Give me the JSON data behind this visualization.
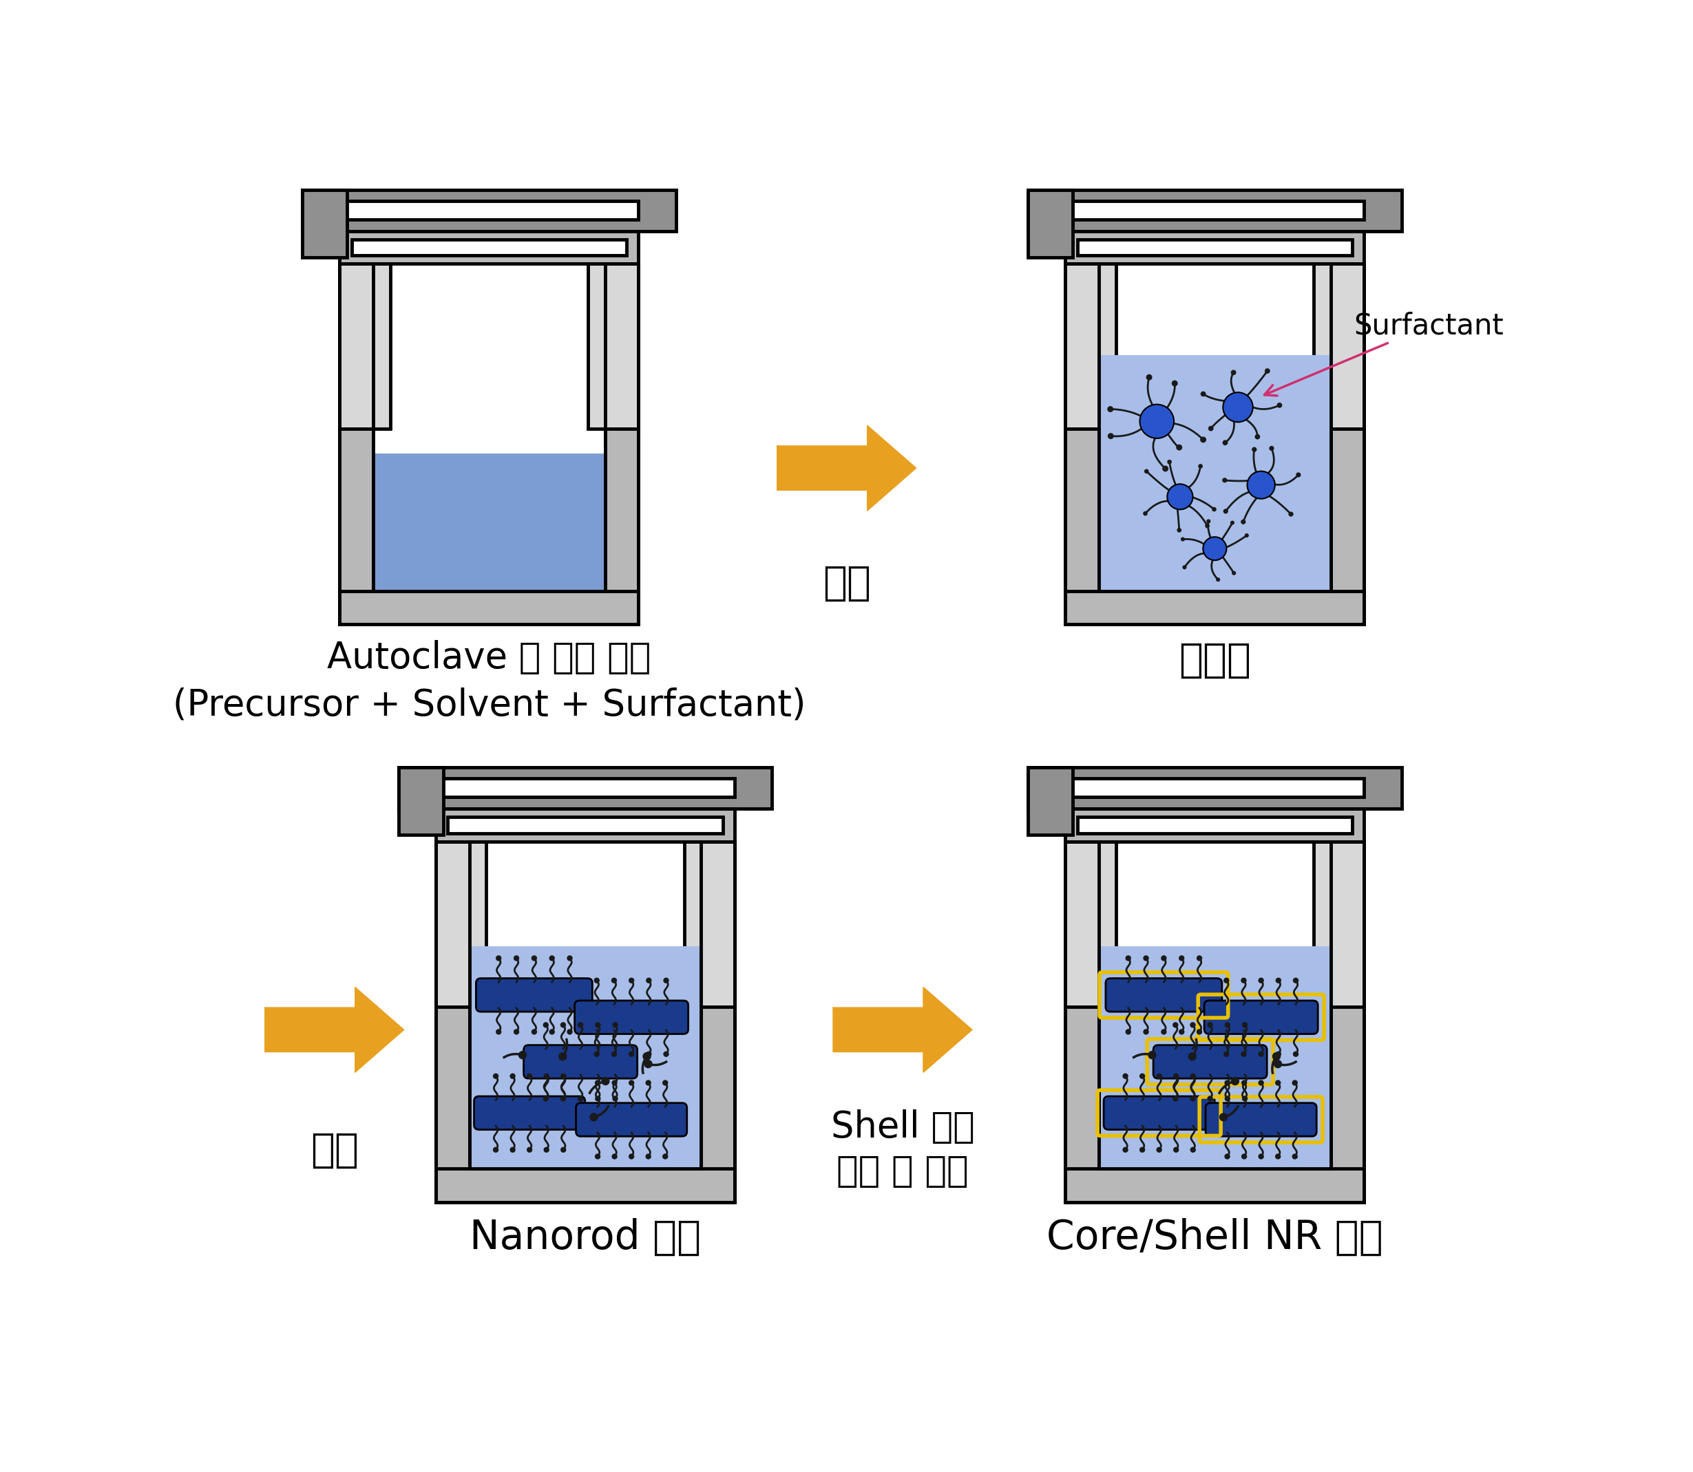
{
  "bg_color": "#ffffff",
  "gray_dark": "#606060",
  "gray_mid": "#909090",
  "gray_light": "#b8b8b8",
  "gray_lighter": "#d8d8d8",
  "blue_liquid": "#7b9dd4",
  "blue_liquid2": "#a8bee8",
  "dark_blue_rod": "#1a3a8c",
  "nanoparticle_color": "#2855cc",
  "surfactant_dark": "#1a1a1a",
  "arrow_color": "#e8a020",
  "red_arrow": "#d03070",
  "yellow_outline": "#e8c000",
  "label1": "Autoclave 에 원료 주입\n(Precursor + Solvent + Surfactant)",
  "label2": "핵생성",
  "label3": "Nanorod 성장",
  "label4": "Core/Shell NR 생성",
  "arrow_label1": "가열",
  "arrow_label2": "가열",
  "arrow_label3": "Shell 원료\n주입 및 가열",
  "surfactant_label": "Surfactant"
}
